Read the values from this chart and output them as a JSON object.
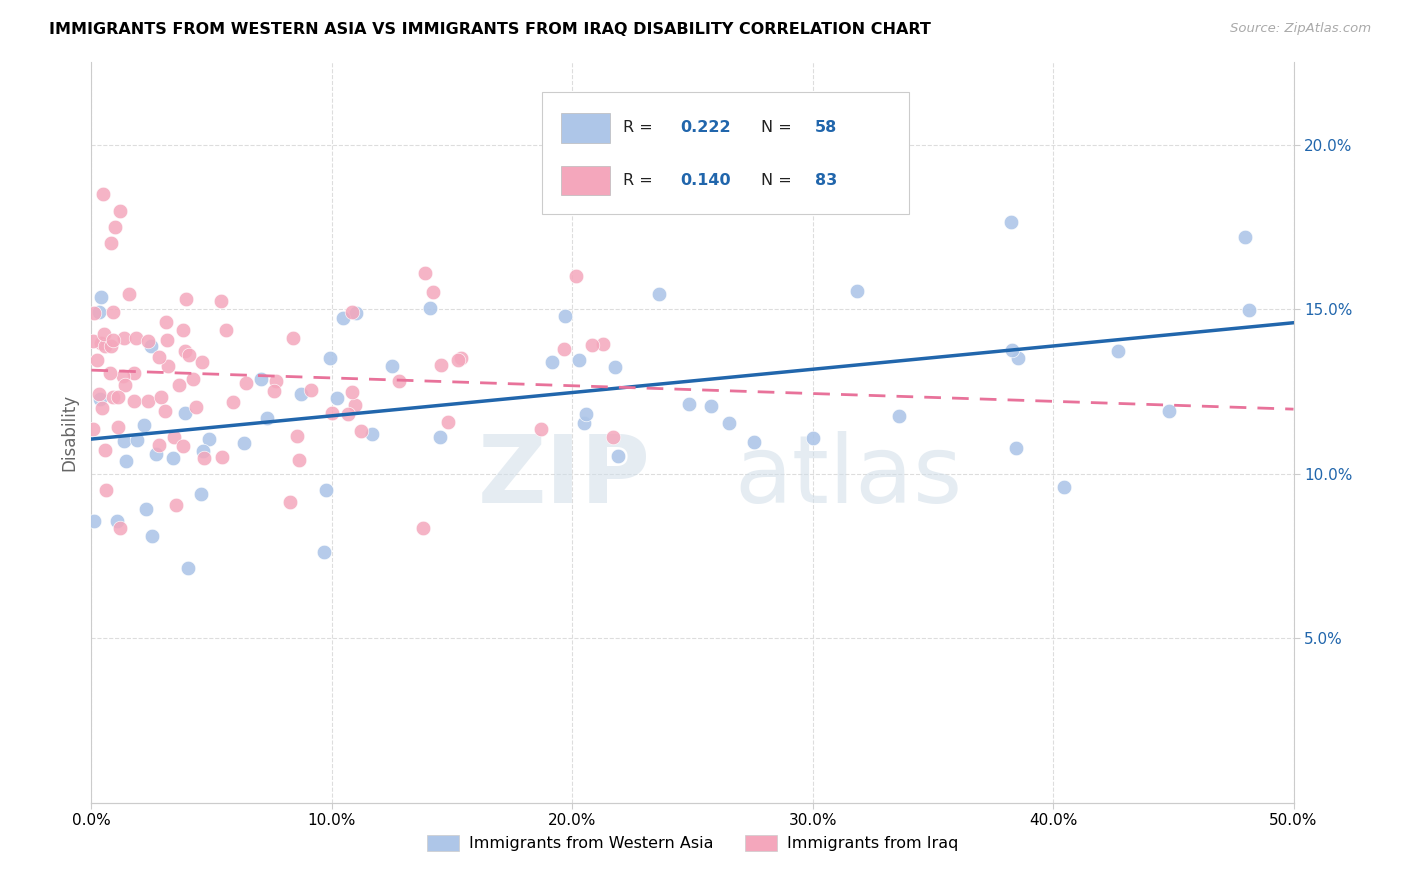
{
  "title": "IMMIGRANTS FROM WESTERN ASIA VS IMMIGRANTS FROM IRAQ DISABILITY CORRELATION CHART",
  "source": "Source: ZipAtlas.com",
  "ylabel": "Disability",
  "x_min": 0.0,
  "x_max": 0.5,
  "y_min": 0.0,
  "y_max": 0.225,
  "x_ticks": [
    0.0,
    0.1,
    0.2,
    0.3,
    0.4,
    0.5
  ],
  "x_tick_labels": [
    "0.0%",
    "10.0%",
    "20.0%",
    "30.0%",
    "40.0%",
    "50.0%"
  ],
  "y_ticks": [
    0.05,
    0.1,
    0.15,
    0.2
  ],
  "y_tick_labels": [
    "5.0%",
    "10.0%",
    "15.0%",
    "20.0%"
  ],
  "legend_labels": [
    "Immigrants from Western Asia",
    "Immigrants from Iraq"
  ],
  "blue_color": "#aec6e8",
  "pink_color": "#f4a7bc",
  "blue_line_color": "#2166ac",
  "pink_line_color": "#e8729a",
  "R_blue": "0.222",
  "N_blue": "58",
  "R_pink": "0.140",
  "N_pink": "83",
  "watermark_zip": "ZIP",
  "watermark_atlas": "atlas"
}
